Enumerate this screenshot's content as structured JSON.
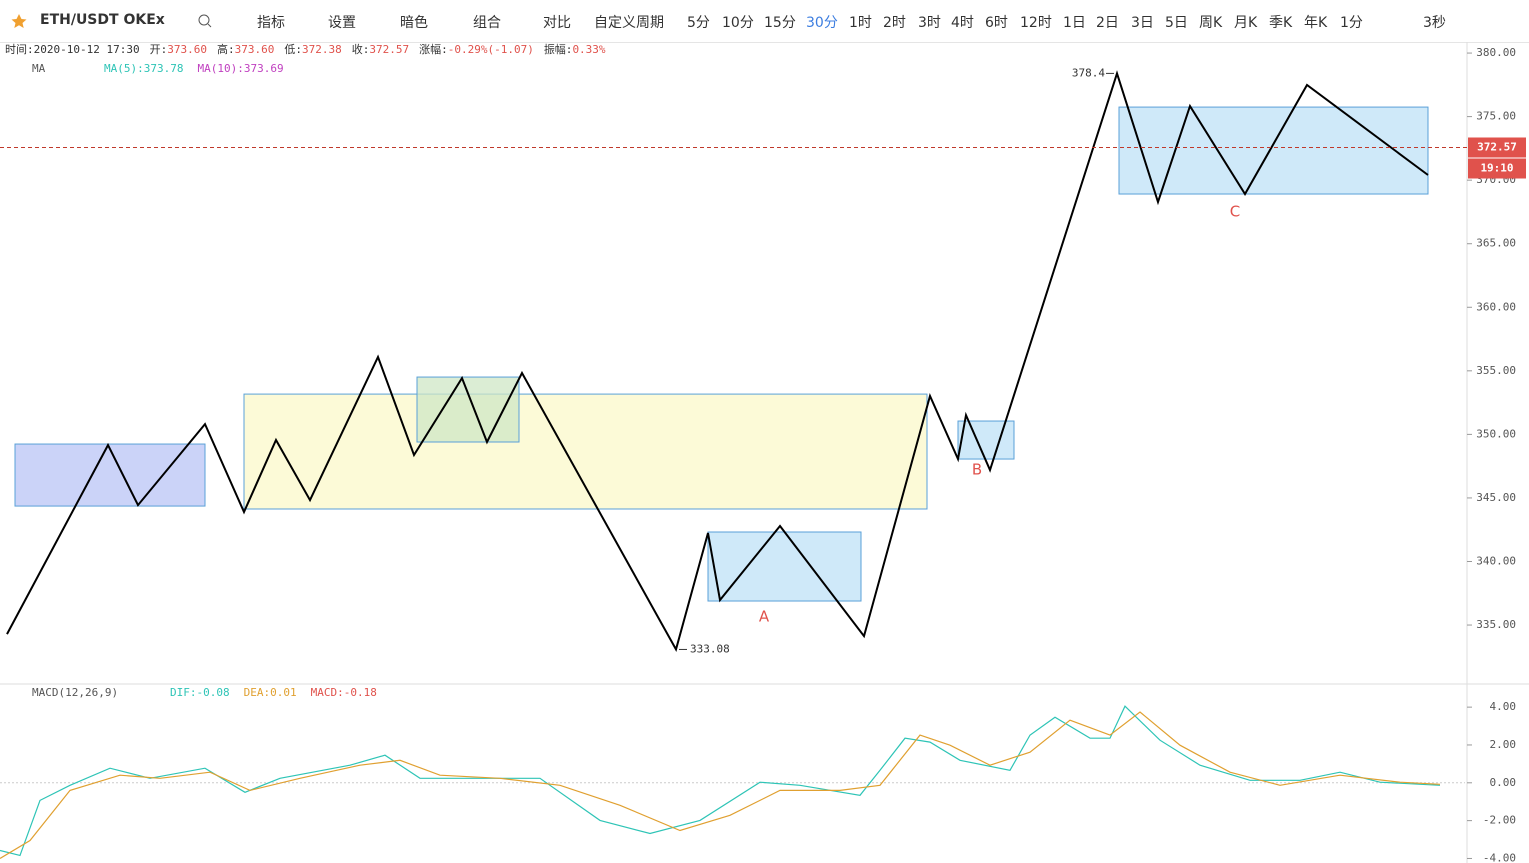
{
  "toolbar": {
    "symbol": "ETH/USDT OKEx",
    "tools": [
      "指标",
      "设置",
      "暗色",
      "组合",
      "对比"
    ],
    "custom_period": "自定义周期",
    "periods": [
      "5分",
      "10分",
      "15分",
      "30分",
      "1时",
      "2时",
      "3时",
      "4时",
      "6时",
      "12时",
      "1日",
      "2日",
      "3日",
      "5日",
      "周K",
      "月K",
      "季K",
      "年K",
      "1分"
    ],
    "active_period": "30分",
    "refresh": "3秒"
  },
  "info_bar": {
    "time": "时间:2020-10-12 17:30",
    "fields": [
      {
        "label": "开:",
        "value": "373.60"
      },
      {
        "label": "高:",
        "value": "373.60"
      },
      {
        "label": "低:",
        "value": "372.38"
      },
      {
        "label": "收:",
        "value": "372.57"
      },
      {
        "label": "涨幅:",
        "value": "-0.29%(-1.07)"
      },
      {
        "label": "振幅:",
        "value": "0.33%"
      }
    ]
  },
  "chart_data": [
    {
      "type": "line",
      "indicator": "MA",
      "legend": [
        "MA(5):373.78",
        "MA(10):373.69"
      ],
      "xlim": [
        0,
        293
      ],
      "ylim": [
        330.44,
        380.87
      ],
      "yticks": [
        {
          "value": 335,
          "label": "335.00"
        },
        {
          "value": 340,
          "label": "340.00"
        },
        {
          "value": 345,
          "label": "345.00"
        },
        {
          "value": 350,
          "label": "350.00"
        },
        {
          "value": 355,
          "label": "355.00"
        },
        {
          "value": 360,
          "label": "360.00"
        },
        {
          "value": 365,
          "label": "365.00"
        },
        {
          "value": 370,
          "label": "370.00"
        },
        {
          "value": 375,
          "label": "375.00"
        },
        {
          "value": 380,
          "label": "380.00"
        }
      ],
      "series": [
        {
          "color": "#000000",
          "x": [
            1.4,
            21.6,
            27.6,
            41,
            48.8,
            55.2,
            62,
            75.6,
            82.8,
            92.4,
            97.4,
            104.4,
            135.2,
            141.6,
            144,
            156,
            172.8,
            186,
            191.6,
            193.2,
            198,
            223.4,
            231.6,
            238,
            249,
            261.4,
            285.6
          ],
          "values": [
            334.29,
            349.16,
            344.44,
            350.81,
            343.89,
            349.56,
            344.83,
            356.09,
            348.38,
            354.43,
            349.4,
            354.83,
            333.08,
            342.24,
            336.97,
            342.79,
            334.13,
            353.02,
            348.06,
            351.52,
            347.2,
            378.4,
            368.28,
            375.83,
            368.91,
            377.49,
            370.41
          ]
        }
      ],
      "boxes": [
        {
          "x": [
            3,
            41
          ],
          "y": [
            344.36,
            349.24
          ],
          "color": "#b9c4f5"
        },
        {
          "x": [
            48.8,
            185.4
          ],
          "y": [
            344.13,
            353.17
          ],
          "color": "#fbf8c9"
        },
        {
          "x": [
            83.4,
            103.8
          ],
          "y": [
            349.4,
            354.51
          ],
          "color": "#cfe7c6"
        },
        {
          "x": [
            141.6,
            172.2
          ],
          "y": [
            336.89,
            342.32
          ],
          "color": "#bfe2f7"
        },
        {
          "x": [
            191.6,
            202.8
          ],
          "y": [
            348.06,
            351.05
          ],
          "color": "#bfe2f7"
        },
        {
          "x": [
            223.8,
            285.6
          ],
          "y": [
            368.91,
            375.75
          ],
          "color": "#bfe2f7"
        }
      ],
      "annotations": [
        "A",
        "B",
        "C"
      ],
      "high_label": "378.4",
      "low_label": "333.08",
      "last_price": 372.57,
      "countdown": "19:10"
    },
    {
      "type": "line",
      "indicator": "MACD(12,26,9)",
      "legend": [
        "DIF:-0.08",
        "DEA:0.01",
        "MACD:-0.18"
      ],
      "xlim": [
        0,
        293
      ],
      "ylim": [
        -4.24,
        5.17
      ],
      "yticks": [
        {
          "value": -4,
          "label": "-4.00"
        },
        {
          "value": -2,
          "label": "-2.00"
        },
        {
          "value": 0,
          "label": "0.00"
        },
        {
          "value": 2,
          "label": "2.00"
        },
        {
          "value": 4,
          "label": "4.00"
        }
      ],
      "series": [
        {
          "color": "#2ec4b6",
          "x": [
            0,
            4,
            8,
            14,
            22,
            30,
            41,
            49,
            56,
            70,
            77,
            84,
            94,
            108,
            120,
            130,
            140,
            152,
            160,
            172,
            176,
            181,
            186,
            192,
            202,
            206,
            211,
            218,
            222,
            225,
            232,
            240,
            250,
            260,
            268,
            276,
            288
          ],
          "values": [
            -3.58,
            -3.84,
            -0.93,
            -0.13,
            0.77,
            0.24,
            0.77,
            -0.5,
            0.24,
            0.93,
            1.46,
            0.24,
            0.24,
            0.24,
            -1.99,
            -2.68,
            -1.99,
            0.03,
            -0.13,
            -0.66,
            0.66,
            2.36,
            2.15,
            1.19,
            0.66,
            2.52,
            3.47,
            2.36,
            2.36,
            4.05,
            2.25,
            0.93,
            0.13,
            0.13,
            0.56,
            0.03,
            -0.13
          ]
        },
        {
          "color": "#e0a030",
          "x": [
            0,
            6,
            14,
            24,
            32,
            42,
            50,
            60,
            72,
            80,
            88,
            100,
            112,
            124,
            136,
            146,
            156,
            168,
            176,
            184,
            190,
            198,
            206,
            214,
            222,
            228,
            236,
            246,
            256,
            268,
            280,
            288
          ],
          "values": [
            -4,
            -3.05,
            -0.4,
            0.4,
            0.24,
            0.56,
            -0.4,
            0.24,
            0.93,
            1.19,
            0.4,
            0.24,
            -0.13,
            -1.19,
            -2.52,
            -1.72,
            -0.4,
            -0.4,
            -0.13,
            2.52,
            1.99,
            0.93,
            1.62,
            3.31,
            2.52,
            3.74,
            1.99,
            0.56,
            -0.13,
            0.4,
            0.03,
            -0.08
          ]
        }
      ]
    }
  ]
}
